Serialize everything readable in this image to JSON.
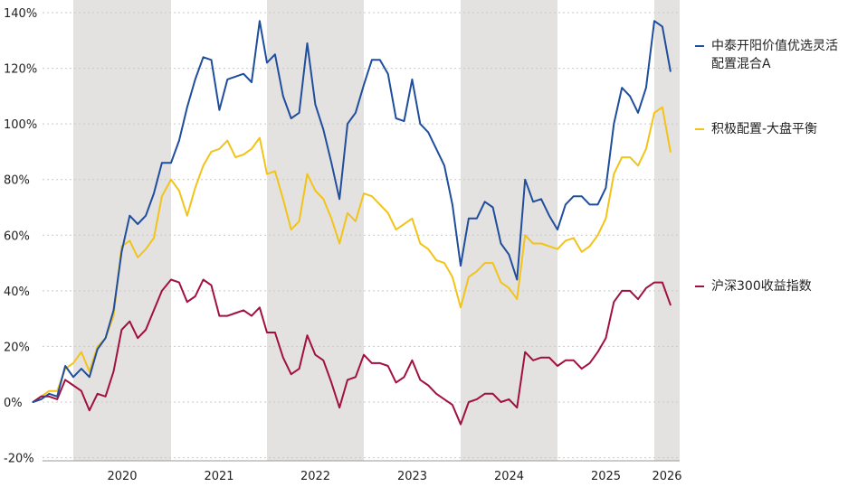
{
  "chart_data": {
    "type": "line",
    "x_start": "2019-08",
    "y_tick_labels": [
      "140%",
      "120%",
      "100%",
      "80%",
      "60%",
      "40%",
      "20%",
      "0%",
      "-20%"
    ],
    "x_tick_labels": [
      "2020",
      "2021",
      "2022",
      "2023",
      "2024",
      "2025",
      "2026"
    ],
    "ylim": [
      -20,
      143
    ],
    "grid": "horizontal-dotted",
    "legend_position": "right",
    "shaded_years": [
      "2020",
      "2022",
      "2024",
      "2026"
    ],
    "series": [
      {
        "name": "中泰开阳价值优选灵活配置混合A",
        "color": "#1f4e9c",
        "values": [
          0,
          1,
          3,
          2,
          13,
          9,
          12,
          9,
          19,
          23,
          33,
          54,
          67,
          64,
          67,
          75,
          86,
          86,
          94,
          106,
          116,
          124,
          123,
          105,
          116,
          117,
          118,
          115,
          137,
          122,
          125,
          110,
          102,
          104,
          129,
          107,
          98,
          86,
          73,
          100,
          104,
          114,
          123,
          123,
          118,
          102,
          101,
          116,
          100,
          97,
          91,
          85,
          71,
          49,
          66,
          66,
          72,
          70,
          57,
          53,
          44,
          80,
          72,
          73,
          67,
          62,
          71,
          74,
          74,
          71,
          71,
          77,
          100,
          113,
          110,
          104,
          113,
          137,
          135,
          119
        ]
      },
      {
        "name": "积极配置-大盘平衡",
        "color": "#f2c318",
        "values": [
          0,
          2,
          4,
          4,
          12,
          14,
          18,
          11,
          20,
          23,
          31,
          56,
          58,
          52,
          55,
          59,
          74,
          80,
          76,
          67,
          77,
          85,
          90,
          91,
          94,
          88,
          89,
          91,
          95,
          82,
          83,
          73,
          62,
          65,
          82,
          76,
          73,
          66,
          57,
          68,
          65,
          75,
          74,
          71,
          68,
          62,
          64,
          66,
          57,
          55,
          51,
          50,
          45,
          34,
          45,
          47,
          50,
          50,
          43,
          41,
          37,
          60,
          57,
          57,
          56,
          55,
          58,
          59,
          54,
          56,
          60,
          66,
          82,
          88,
          88,
          85,
          91,
          104,
          106,
          90
        ]
      },
      {
        "name": "沪深300收益指数",
        "color": "#a0113f",
        "values": [
          0,
          2,
          2,
          1,
          8,
          6,
          4,
          -3,
          3,
          2,
          11,
          26,
          29,
          23,
          26,
          33,
          40,
          44,
          43,
          36,
          38,
          44,
          42,
          31,
          31,
          32,
          33,
          31,
          34,
          25,
          25,
          16,
          10,
          12,
          24,
          17,
          15,
          7,
          -2,
          8,
          9,
          17,
          14,
          14,
          13,
          7,
          9,
          15,
          8,
          6,
          3,
          1,
          -1,
          -8,
          0,
          1,
          3,
          3,
          0,
          1,
          -2,
          18,
          15,
          16,
          16,
          13,
          15,
          15,
          12,
          14,
          18,
          23,
          36,
          40,
          40,
          37,
          41,
          43,
          43,
          35
        ]
      }
    ]
  }
}
